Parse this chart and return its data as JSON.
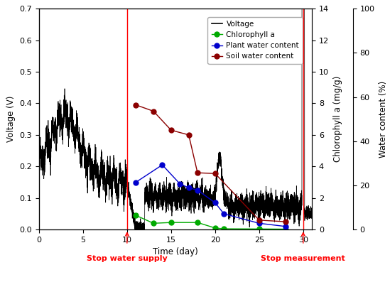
{
  "xlabel": "Time (day)",
  "ylabel_left": "Voltage (V)",
  "ylabel_mid": "Chlorophyll a (mg/g)",
  "ylabel_right": "Water content (%)",
  "xlim": [
    0,
    31
  ],
  "ylim_left": [
    0,
    0.7
  ],
  "ylim_mid": [
    0,
    14
  ],
  "ylim_right": [
    0,
    100
  ],
  "stop_water_day": 10,
  "stop_measure_day": 30,
  "stop_water_label": "Stop water supply",
  "stop_measure_label": "Stop measurement",
  "chlorophyll_x": [
    11,
    13,
    15,
    18,
    20,
    21,
    25,
    28
  ],
  "chlorophyll_y": [
    0.9,
    0.4,
    0.45,
    0.45,
    0.1,
    0.05,
    0.04,
    0.03
  ],
  "plant_water_x": [
    11,
    14,
    16,
    17,
    18,
    20,
    21,
    25,
    28
  ],
  "plant_water_y": [
    3.0,
    4.1,
    2.9,
    2.65,
    2.5,
    1.7,
    1.0,
    0.4,
    0.2
  ],
  "soil_water_x": [
    11,
    13,
    15,
    17,
    18,
    20,
    25,
    28
  ],
  "soil_water_y": [
    7.9,
    7.5,
    6.3,
    6.0,
    3.6,
    3.55,
    0.6,
    0.5
  ],
  "voltage_color": "#000000",
  "chlorophyll_color": "#00aa00",
  "plant_water_color": "#0000cc",
  "soil_water_color": "#8B0000",
  "annotation_color": "#ff0000",
  "legend_fontsize": 7.5,
  "axis_fontsize": 8.5,
  "tick_fontsize": 8
}
